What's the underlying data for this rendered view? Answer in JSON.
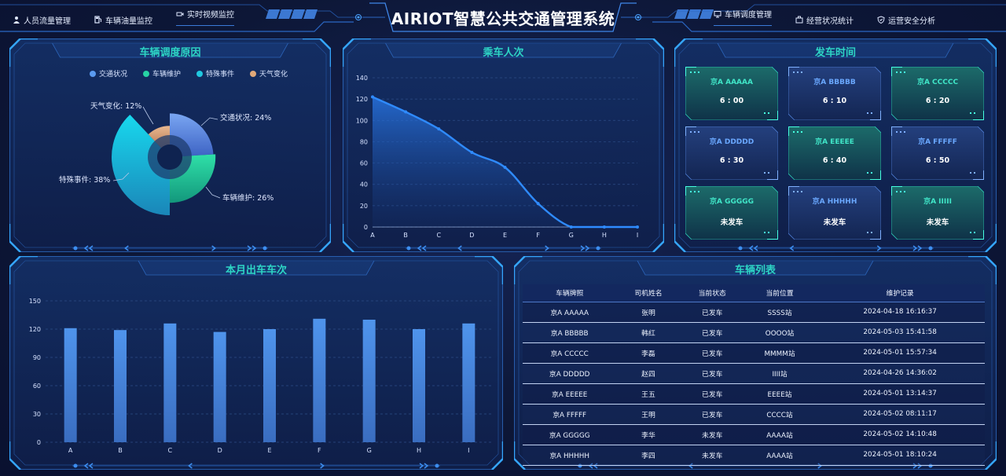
{
  "header": {
    "title": "AIRIOT智慧公共交通管理系统",
    "nav_left": [
      {
        "label": "人员流量管理",
        "icon": "person-icon"
      },
      {
        "label": "车辆油量监控",
        "icon": "fuel-icon"
      },
      {
        "label": "实时视频监控",
        "icon": "video-icon",
        "active": true
      }
    ],
    "nav_right": [
      {
        "label": "车辆调度管理",
        "icon": "monitor-icon",
        "active": true
      },
      {
        "label": "经营状况统计",
        "icon": "briefcase-icon"
      },
      {
        "label": "运营安全分析",
        "icon": "shield-icon"
      }
    ]
  },
  "colors": {
    "panel_title": "#2dd5c5",
    "accent_blue": "#3b7bd9",
    "bar": "#4a8ce0"
  },
  "dispatch_reasons": {
    "title": "车辆调度原因",
    "legend": [
      {
        "name": "交通状况",
        "color": "#5b9bf0"
      },
      {
        "name": "车辆维护",
        "color": "#27d3a4"
      },
      {
        "name": "特殊事件",
        "color": "#20c8e0"
      },
      {
        "name": "天气变化",
        "color": "#e0a878"
      }
    ],
    "labels": {
      "weather": "天气变化: 12%",
      "traffic": "交通状况: 24%",
      "special": "特殊事件: 38%",
      "maintenance": "车辆维护: 26%"
    }
  },
  "ridership": {
    "title": "乘车人次"
  },
  "departure_times": {
    "title": "发车时间",
    "cards": [
      {
        "plate": "京A AAAAA",
        "time": "6 : 00",
        "style": "green"
      },
      {
        "plate": "京A BBBBB",
        "time": "6 : 10",
        "style": "blue"
      },
      {
        "plate": "京A CCCCC",
        "time": "6 : 20",
        "style": "green"
      },
      {
        "plate": "京A DDDDD",
        "time": "6 : 30",
        "style": "blue"
      },
      {
        "plate": "京A EEEEE",
        "time": "6 : 40",
        "style": "green"
      },
      {
        "plate": "京A FFFFF",
        "time": "6 : 50",
        "style": "blue"
      },
      {
        "plate": "京A GGGGG",
        "time": "未发车",
        "style": "green"
      },
      {
        "plate": "京A HHHHH",
        "time": "未发车",
        "style": "blue"
      },
      {
        "plate": "京A IIIII",
        "time": "未发车",
        "style": "green"
      }
    ]
  },
  "monthly_trips": {
    "title": "本月出车车次"
  },
  "vehicle_list": {
    "title": "车辆列表",
    "columns": [
      "车辆牌照",
      "司机姓名",
      "当前状态",
      "当前位置",
      "维护记录"
    ],
    "rows": [
      [
        "京A AAAAA",
        "张明",
        "已发车",
        "SSSS站",
        "2024-04-18 16:16:37"
      ],
      [
        "京A BBBBB",
        "韩红",
        "已发车",
        "OOOO站",
        "2024-05-03 15:41:58"
      ],
      [
        "京A CCCCC",
        "李磊",
        "已发车",
        "MMMM站",
        "2024-05-01 15:57:34"
      ],
      [
        "京A DDDDD",
        "赵四",
        "已发车",
        "IIII站",
        "2024-04-26 14:36:02"
      ],
      [
        "京A EEEEE",
        "王五",
        "已发车",
        "EEEE站",
        "2024-05-01 13:14:37"
      ],
      [
        "京A FFFFF",
        "王明",
        "已发车",
        "CCCC站",
        "2024-05-02 08:11:17"
      ],
      [
        "京A GGGGG",
        "李华",
        "未发车",
        "AAAA站",
        "2024-05-02 14:10:48"
      ],
      [
        "京A HHHHH",
        "李四",
        "未发车",
        "AAAA站",
        "2024-05-01 18:10:24"
      ]
    ]
  },
  "chart_data": [
    {
      "type": "pie",
      "title": "车辆调度原因",
      "categories": [
        "交通状况",
        "车辆维护",
        "特殊事件",
        "天气变化"
      ],
      "values": [
        24,
        26,
        38,
        12
      ],
      "colors": [
        "#5b9bf0",
        "#27d3a4",
        "#20c8e0",
        "#e0a878"
      ],
      "legend": "top"
    },
    {
      "type": "area",
      "title": "乘车人次",
      "categories": [
        "A",
        "B",
        "C",
        "D",
        "E",
        "F",
        "G",
        "H",
        "I"
      ],
      "values": [
        122,
        108,
        92,
        70,
        56,
        22,
        0,
        0,
        0
      ],
      "ylim": [
        0,
        140
      ],
      "yticks": [
        0,
        20,
        40,
        60,
        80,
        100,
        120,
        140
      ],
      "grid": true
    },
    {
      "type": "bar",
      "title": "本月出车车次",
      "categories": [
        "A",
        "B",
        "C",
        "D",
        "E",
        "F",
        "G",
        "H",
        "I"
      ],
      "values": [
        121,
        119,
        126,
        117,
        120,
        131,
        130,
        120,
        126
      ],
      "ylim": [
        0,
        150
      ],
      "yticks": [
        0,
        30,
        60,
        90,
        120,
        150
      ],
      "grid": true
    }
  ]
}
